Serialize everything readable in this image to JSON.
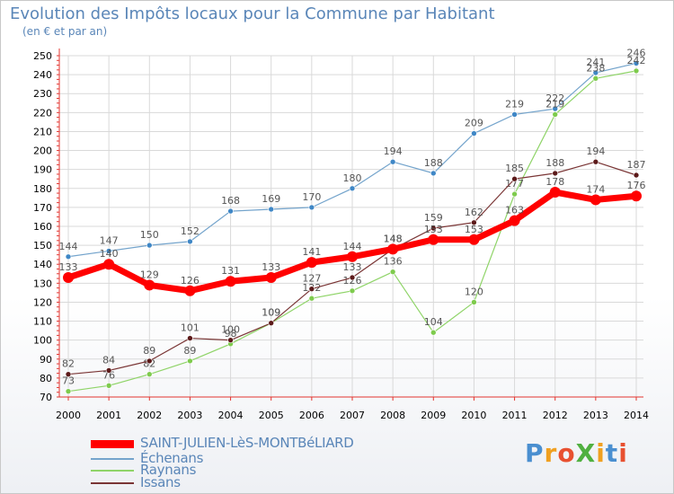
{
  "header": {
    "title": "Evolution des Impôts locaux pour la Commune par Habitant",
    "subtitle": "(en € et par an)"
  },
  "logo": {
    "text": "ProXiti",
    "letter_colors": [
      "#4a8fd0",
      "#f0a020",
      "#e85030",
      "#50b040",
      "#f0a020",
      "#4a8fd0",
      "#e85030"
    ]
  },
  "colors": {
    "axis": "#e3342f",
    "grid": "#d9d9d9",
    "tick_text": "#000000",
    "value_text": "#555555"
  },
  "chart_data": {
    "type": "line",
    "title": "Evolution des Impôts locaux pour la Commune par Habitant",
    "subtitle": "(en € et par an)",
    "xlabel": "",
    "ylabel": "",
    "ylim": [
      70,
      250
    ],
    "y_ticks": [
      70,
      80,
      90,
      100,
      110,
      120,
      130,
      140,
      150,
      160,
      170,
      180,
      190,
      200,
      210,
      220,
      230,
      240,
      250
    ],
    "categories": [
      "2000",
      "2001",
      "2002",
      "2003",
      "2004",
      "2005",
      "2006",
      "2007",
      "2008",
      "2009",
      "2010",
      "2011",
      "2012",
      "2013",
      "2014"
    ],
    "grid": true,
    "legend_position": "bottom-left",
    "series": [
      {
        "name": "Échenans",
        "color": "#74a4cc",
        "marker": "#3f87c6",
        "width": 1.2,
        "values": [
          144,
          147,
          150,
          152,
          168,
          169,
          170,
          180,
          194,
          188,
          209,
          219,
          222,
          241,
          246
        ]
      },
      {
        "name": "Raynans",
        "color": "#8fd468",
        "marker": "#7ecb4d",
        "width": 1.2,
        "values": [
          73,
          76,
          82,
          89,
          98,
          109,
          122,
          126,
          136,
          104,
          120,
          177,
          219,
          238,
          242
        ]
      },
      {
        "name": "Issans",
        "color": "#7a3535",
        "marker": "#5c1a1a",
        "width": 1.2,
        "values": [
          82,
          84,
          89,
          101,
          100,
          109,
          127,
          133,
          148,
          159,
          162,
          185,
          188,
          194,
          187
        ]
      },
      {
        "name": "SAINT-JULIEN-LèS-MONTBéLIARD",
        "color": "#ff0000",
        "marker": "#ff0000",
        "width": 7,
        "values": [
          133,
          140,
          129,
          126,
          131,
          133,
          141,
          144,
          148,
          153,
          153,
          163,
          178,
          174,
          176
        ]
      }
    ],
    "legend": [
      "SAINT-JULIEN-LèS-MONTBéLIARD",
      "Échenans",
      "Raynans",
      "Issans"
    ]
  }
}
